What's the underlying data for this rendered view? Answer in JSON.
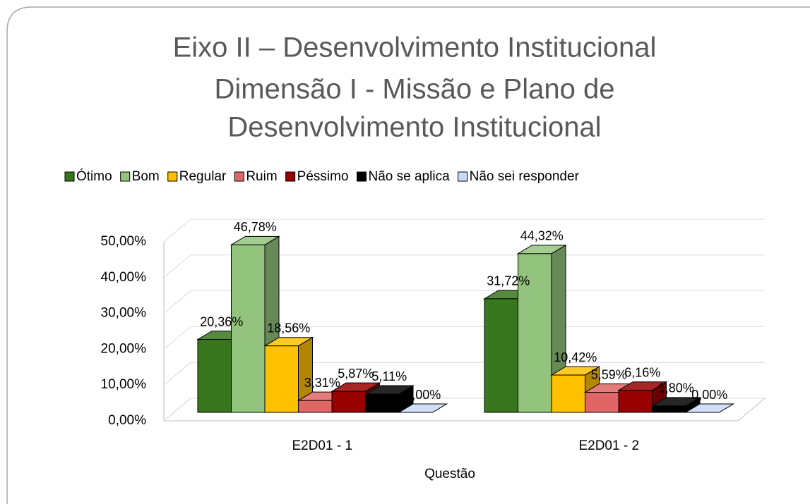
{
  "chart_data": {
    "type": "bar3d",
    "title": [
      "Eixo II – Desenvolvimento Institucional",
      "Dimensão I - Missão e Plano de",
      "Desenvolvimento Institucional"
    ],
    "x_label": "Questão",
    "categories": [
      "E2D01 - 1",
      "E2D01 - 2"
    ],
    "series": [
      {
        "name": "Ótimo",
        "color": "#38761d",
        "values": [
          20.36,
          31.72
        ],
        "value_labels": [
          "20,36%",
          "31,72%"
        ]
      },
      {
        "name": "Bom",
        "color": "#93c47d",
        "values": [
          46.78,
          44.32
        ],
        "value_labels": [
          "46,78%",
          "44,32%"
        ]
      },
      {
        "name": "Regular",
        "color": "#ffc000",
        "values": [
          18.56,
          10.42
        ],
        "value_labels": [
          "18,56%",
          "10,42%"
        ]
      },
      {
        "name": "Ruim",
        "color": "#e06666",
        "values": [
          3.31,
          5.59
        ],
        "value_labels": [
          "3,31%",
          "5,59%"
        ]
      },
      {
        "name": "Péssimo",
        "color": "#990000",
        "values": [
          5.87,
          6.16
        ],
        "value_labels": [
          "5,87%",
          "6,16%"
        ]
      },
      {
        "name": "Não se aplica",
        "color": "#000000",
        "values": [
          5.11,
          1.8
        ],
        "value_labels": [
          "5,11%",
          "1,80%"
        ]
      },
      {
        "name": "Não sei responder",
        "color": "#c9daf8",
        "values": [
          0.0,
          0.0
        ],
        "value_labels": [
          "0,00%",
          "0,00%"
        ]
      }
    ],
    "ylim": [
      0,
      50
    ],
    "yticks": [
      {
        "value": 0,
        "label": "0,00%"
      },
      {
        "value": 10,
        "label": "10,00%"
      },
      {
        "value": 20,
        "label": "20,00%"
      },
      {
        "value": 30,
        "label": "30,00%"
      },
      {
        "value": 40,
        "label": "40,00%"
      },
      {
        "value": 50,
        "label": "50,00%"
      }
    ],
    "grid": true,
    "legend": "top"
  }
}
